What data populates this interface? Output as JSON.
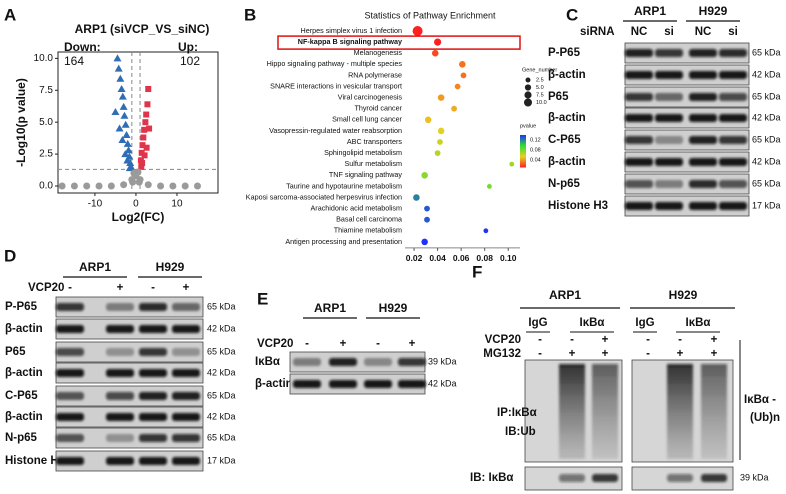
{
  "panel_labels": [
    "A",
    "B",
    "C",
    "D",
    "E",
    "F"
  ],
  "chart_data": [
    {
      "type": "scatter",
      "title": "ARP1 (siVCP_VS_siNC)",
      "x_label": "Log2(FC)",
      "y_label": "-Log10(p value)",
      "down_label": "Down:",
      "down_count": 164,
      "up_label": "Up:",
      "up_count": 102,
      "xlim": [
        -19,
        20
      ],
      "xticks": [
        -10,
        0,
        10
      ],
      "ylim": [
        -0.55,
        10.5
      ],
      "yticks": [
        {
          "value": 0,
          "label": "0.0"
        },
        {
          "value": 2.5,
          "label": "2.5"
        },
        {
          "value": 5,
          "label": "5.0"
        },
        {
          "value": 7.5,
          "label": "7.5"
        },
        {
          "value": 10,
          "label": "10.0"
        }
      ],
      "vlines": [
        -1,
        1
      ],
      "hline": 1.3,
      "series": [
        {
          "marker": "triangle",
          "color": "#2f6db5",
          "x": [
            -4.5,
            -4.2,
            -3.8,
            -3.5,
            -3.2,
            -3,
            -2.8,
            -2.5,
            -2.3,
            -2,
            -1.8,
            -1.6,
            -1.4,
            -1.2,
            -5,
            -4,
            -3.3,
            -2.6,
            -2.1,
            -1.5
          ],
          "values": [
            10,
            9.2,
            8.4,
            7.6,
            7,
            6.2,
            5.5,
            4.8,
            4,
            3.3,
            2.8,
            2.3,
            1.8,
            1.5,
            5.8,
            4.5,
            3.6,
            2.5,
            2,
            1.4
          ]
        },
        {
          "marker": "square",
          "color": "#e0344a",
          "x": [
            3,
            2.8,
            2.5,
            2.3,
            2,
            1.8,
            1.6,
            1.4,
            1.2,
            3.2,
            2.6,
            2.1,
            1.5,
            1.3
          ],
          "values": [
            7.6,
            6.4,
            5.6,
            5,
            4.4,
            3.8,
            3.2,
            2.6,
            2,
            4.5,
            3,
            2.4,
            1.8,
            1.5
          ]
        },
        {
          "marker": "circle",
          "color": "#9a9a9a",
          "x": [
            -18,
            -15,
            -12,
            -9,
            -6,
            -3,
            -1,
            0,
            1,
            3,
            6,
            9,
            12,
            15,
            -0.5,
            0.5,
            -0.8,
            0.8
          ],
          "values": [
            0,
            0,
            0,
            0,
            0,
            0.1,
            0.5,
            0.8,
            0.5,
            0.1,
            0,
            0,
            0,
            0,
            1,
            1.1,
            0.3,
            0.3
          ]
        }
      ]
    },
    {
      "type": "dot",
      "title": "Statistics of Pathway Enrichment",
      "categories": [
        "Herpes simplex virus 1 infection",
        "NF-kappa B signaling pathway",
        "Melanogenesis",
        "Hippo signaling pathway - multiple species",
        "RNA polymerase",
        "SNARE interactions in vesicular transport",
        "Viral carcinogenesis",
        "Thyroid cancer",
        "Small cell lung cancer",
        "Vasopressin-regulated water reabsorption",
        "ABC transporters",
        "Sphingolipid metabolism",
        "Sulfur metabolism",
        "TNF signaling pathway",
        "Taurine and hypotaurine metabolism",
        "Kaposi sarcoma-associated herpesvirus infection",
        "Arachidonic acid metabolism",
        "Basal cell carcinoma",
        "Thiamine metabolism",
        "Antigen processing and presentation"
      ],
      "values": [
        0.023,
        0.04,
        0.038,
        0.061,
        0.062,
        0.057,
        0.043,
        0.054,
        0.032,
        0.043,
        0.042,
        0.04,
        0.103,
        0.029,
        0.084,
        0.022,
        0.031,
        0.031,
        0.081,
        0.029
      ],
      "sizes": [
        10,
        4,
        3,
        3,
        2,
        2,
        3,
        2,
        3,
        3,
        2,
        2,
        1,
        3,
        1,
        3,
        2,
        2,
        1,
        3
      ],
      "pvalues": [
        0.002,
        0.01,
        0.02,
        0.03,
        0.03,
        0.035,
        0.04,
        0.045,
        0.05,
        0.055,
        0.06,
        0.065,
        0.07,
        0.075,
        0.08,
        0.12,
        0.13,
        0.13,
        0.14,
        0.14
      ],
      "highlight_index": 1,
      "highlight_color": "#e01010",
      "xlim": [
        0.0123,
        0.11
      ],
      "xticks": [
        0.02,
        0.04,
        0.06,
        0.08,
        {
          "value": 0.1,
          "label": "0.10"
        }
      ],
      "size_legend": {
        "title": "Gene_number",
        "ticks": [
          2.5,
          {
            "value": 5,
            "label": "5.0"
          },
          7.5,
          {
            "value": 10,
            "label": "10.0"
          }
        ]
      },
      "color_legend": {
        "title": "pvalue",
        "lim": [
          0.01,
          0.14
        ],
        "ticks": [
          0.12,
          0.08,
          0.04
        ],
        "colors": [
          "#ff2020",
          "#e8d020",
          "#30e030",
          "#2030ff"
        ]
      }
    }
  ],
  "panel_c": {
    "groups": [
      "ARP1",
      "H929"
    ],
    "condition_label": "siRNA",
    "lanes": [
      "NC",
      "si",
      "NC",
      "si"
    ],
    "rows": [
      {
        "label": "P-P65",
        "size": "65 kDa"
      },
      {
        "label": "β-actin",
        "size": "42 kDa"
      },
      {
        "label": "P65",
        "size": "65 kDa"
      },
      {
        "label": "β-actin",
        "size": "42 kDa"
      },
      {
        "label": "C-P65",
        "size": "65 kDa"
      },
      {
        "label": "β-actin",
        "size": "42 kDa"
      },
      {
        "label": "N-p65",
        "size": "65 kDa"
      },
      {
        "label": "Histone H3",
        "size": "17 kDa"
      }
    ]
  },
  "panel_d": {
    "groups": [
      "ARP1",
      "H929"
    ],
    "condition_label": "VCP20",
    "lanes": [
      "-",
      "+",
      "-",
      "+"
    ],
    "rows": [
      {
        "label": "P-P65",
        "size": "65 kDa"
      },
      {
        "label": "β-actin",
        "size": "42 kDa"
      },
      {
        "label": "P65",
        "size": "65 kDa"
      },
      {
        "label": "β-actin",
        "size": "42 kDa"
      },
      {
        "label": "C-P65",
        "size": "65 kDa"
      },
      {
        "label": "β-actin",
        "size": "42 kDa"
      },
      {
        "label": "N-p65",
        "size": "65 kDa"
      },
      {
        "label": "Histone H3",
        "size": "17 kDa"
      }
    ]
  },
  "panel_e": {
    "groups": [
      "ARP1",
      "H929"
    ],
    "condition_label": "VCP20",
    "lanes": [
      "-",
      "+",
      "-",
      "+"
    ],
    "rows": [
      {
        "label": "IκBα",
        "size": "39 kDa"
      },
      {
        "label": "β-actin",
        "size": "42 kDa"
      }
    ]
  },
  "panel_f": {
    "groups": [
      "ARP1",
      "H929"
    ],
    "antibodies": [
      "IgG",
      "IκBα",
      "IgG",
      "IκBα"
    ],
    "conditions": [
      {
        "label": "VCP20",
        "lanes": [
          "-",
          "-",
          "+",
          "-",
          "-",
          "+"
        ]
      },
      {
        "label": "MG132",
        "lanes": [
          "-",
          "+",
          "+",
          "-",
          "+",
          "+"
        ]
      }
    ],
    "ip_label": "IP:IκBα",
    "ib_label": "IB:Ub",
    "bracket_label": [
      "IκBα -",
      "(Ub)n"
    ],
    "input_label": "IB: IκBα",
    "input_size": "39 kDa"
  }
}
